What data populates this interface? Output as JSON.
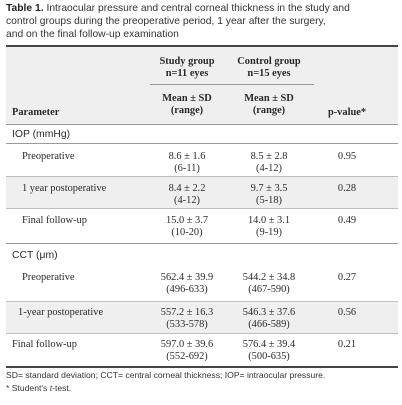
{
  "caption": {
    "label": "Table 1.",
    "line1": "Intraocular pressure and central corneal thickness in the study and",
    "line2": "control groups during the preoperative period, 1 year after the surgery,",
    "line3": "and on the final follow-up examination"
  },
  "header": {
    "study_group": "Study group",
    "study_n": "n=11 eyes",
    "control_group": "Control group",
    "control_n": "n=15 eyes",
    "parameter": "Parameter",
    "mean_sd": "Mean ± SD",
    "range": "(range)",
    "pvalue": "p-value*"
  },
  "sections": [
    {
      "title": "IOP (mmHg)",
      "rows": [
        {
          "label": "Preoperative",
          "study_mean": "8.6 ± 1.6",
          "study_range": "(6-11)",
          "control_mean": "8.5 ± 2.8",
          "control_range": "(4-12)",
          "p": "0.95"
        },
        {
          "label": "1 year postoperative",
          "study_mean": "8.4 ± 2.2",
          "study_range": "(4-12)",
          "control_mean": "9.7 ± 3.5",
          "control_range": "(5-18)",
          "p": "0.28"
        },
        {
          "label": "Final follow-up",
          "study_mean": "15.0 ± 3.7",
          "study_range": "(10-20)",
          "control_mean": "14.0 ± 3.1",
          "control_range": "(9-19)",
          "p": "0.49"
        }
      ]
    },
    {
      "title": "CCT (μm)",
      "rows": [
        {
          "label": "Preoperative",
          "study_mean": "562.4 ± 39.9",
          "study_range": "(496-633)",
          "control_mean": "544.2 ± 34.8",
          "control_range": "(467-590)",
          "p": "0.27"
        },
        {
          "label": "1-year postoperative",
          "study_mean": "557.2 ± 16.3",
          "study_range": "(533-578)",
          "control_mean": "546.3 ± 37.6",
          "control_range": "(466-589)",
          "p": "0.56"
        },
        {
          "label": "Final follow-up",
          "study_mean": "597.0 ± 39.6",
          "study_range": "(552-692)",
          "control_mean": "576.4 ± 39.4",
          "control_range": "(500-635)",
          "p": "0.21"
        }
      ]
    }
  ],
  "footer": {
    "abbrev": "SD= standard deviation; CCT= central corneal thickness; IOP= intraocular pressure.",
    "note_prefix": "* Student's ",
    "note_italic": "t",
    "note_suffix": "-test."
  }
}
